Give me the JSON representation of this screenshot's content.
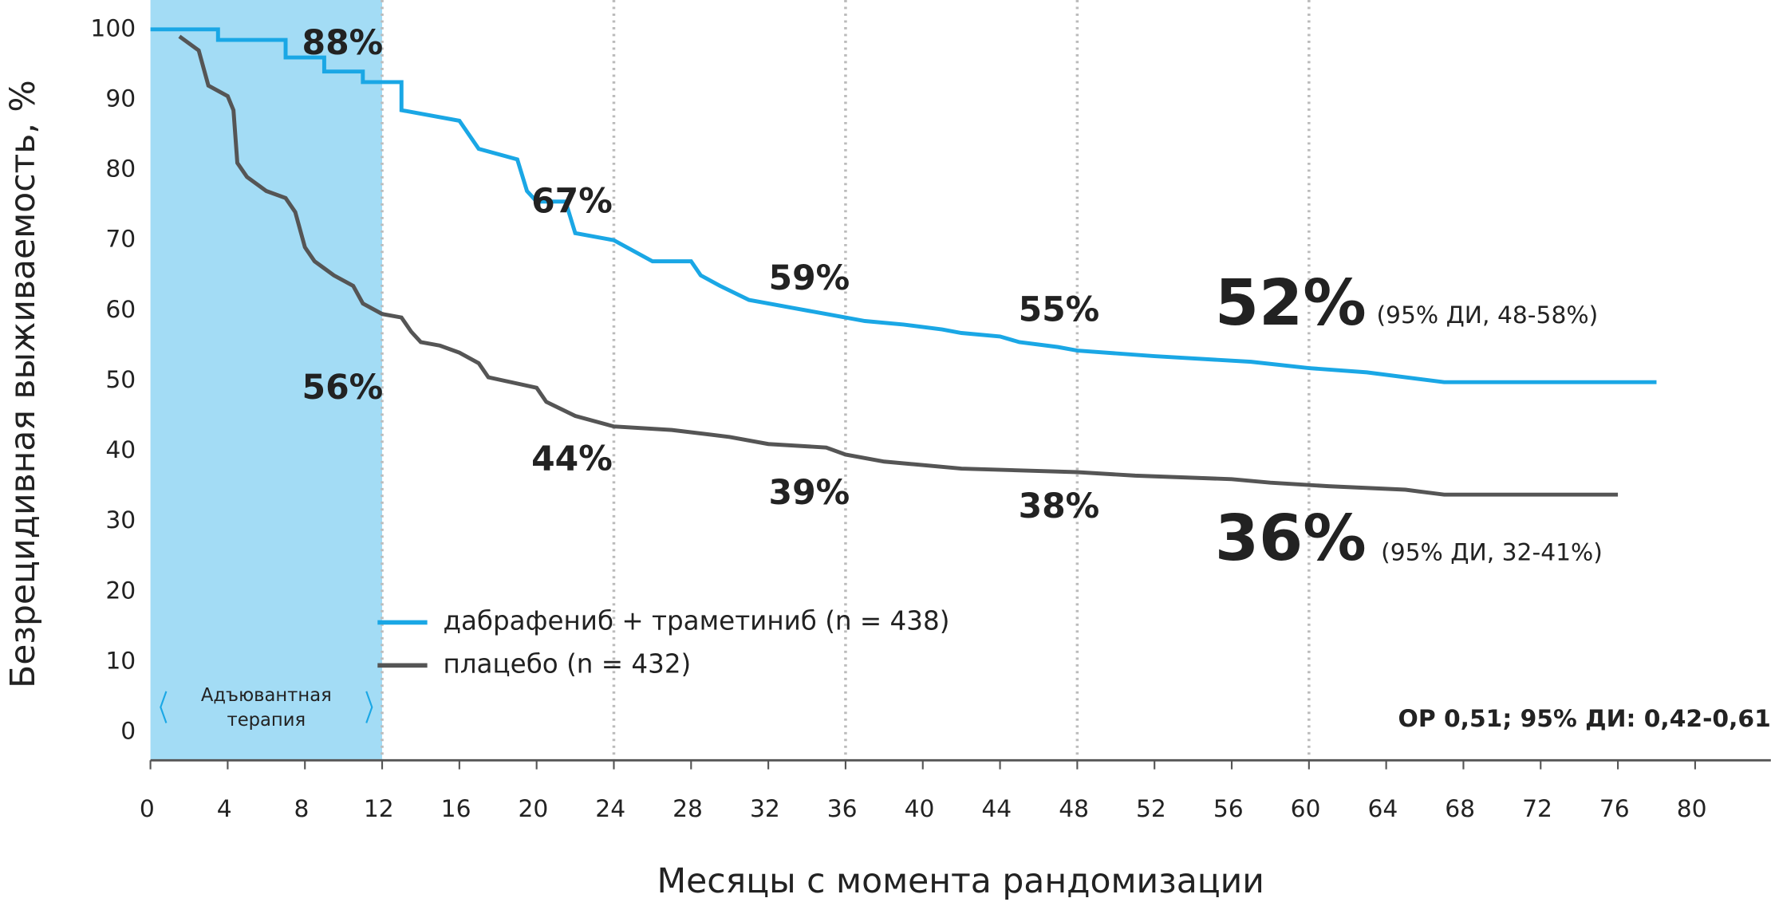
{
  "chart_data": {
    "type": "line",
    "y_label": "Безрецидивная выживаемость, %",
    "x_label": "Месяцы с момента рандомизации",
    "xlim": [
      0,
      80
    ],
    "ylim": [
      -4,
      100
    ],
    "xticks": [
      0,
      4,
      8,
      12,
      16,
      20,
      24,
      28,
      32,
      36,
      40,
      44,
      48,
      52,
      56,
      60,
      64,
      68,
      72,
      76,
      80
    ],
    "yticks": [
      0,
      10,
      20,
      30,
      40,
      50,
      60,
      70,
      80,
      90,
      100
    ],
    "xgrid": [
      12,
      24,
      36,
      48,
      60
    ],
    "shaded_range": [
      0,
      12
    ],
    "shaded_label": [
      "Адъювантная",
      "терапия"
    ],
    "shaded_color": "#a3dcf5",
    "series": [
      {
        "name": "дабрафениб + траметиниб (n = 438)",
        "color": "#1aa7e5",
        "x": [
          0,
          3.5,
          3.5,
          7,
          7,
          9,
          9,
          11,
          11,
          13,
          13,
          16,
          17,
          19,
          19.5,
          20,
          21.5,
          22,
          24,
          26,
          28,
          28.5,
          29.5,
          31,
          33,
          35,
          37,
          39,
          41,
          42,
          44,
          45,
          47,
          48,
          52,
          57,
          60,
          63,
          67,
          78
        ],
        "values": [
          100,
          100,
          98.5,
          98.5,
          96,
          96,
          94,
          94,
          92.5,
          92.5,
          88.5,
          87,
          83,
          81.5,
          77,
          75.5,
          75.5,
          71,
          70,
          67,
          67,
          65,
          63.5,
          61.5,
          60.5,
          59.5,
          58.5,
          58,
          57.3,
          56.8,
          56.3,
          55.5,
          54.8,
          54.3,
          53.5,
          52.7,
          51.8,
          51.2,
          49.8,
          49.8
        ]
      },
      {
        "name": "плацебо (n = 432)",
        "color": "#555555",
        "x": [
          1.5,
          2.5,
          3,
          4,
          4.3,
          4.5,
          5,
          6,
          7,
          7.5,
          8,
          8.5,
          9,
          9.5,
          10.5,
          11,
          12,
          13,
          13.5,
          14,
          15,
          16,
          17,
          17.5,
          20,
          20.5,
          22,
          24,
          27,
          30,
          32,
          35,
          36,
          38,
          42,
          48,
          51,
          56,
          58,
          61,
          65,
          67,
          76
        ],
        "values": [
          99,
          97,
          92,
          90.5,
          88.5,
          81,
          79,
          77,
          76,
          74,
          69,
          67,
          66,
          65,
          63.5,
          61,
          59.5,
          59,
          57,
          55.5,
          55,
          54,
          52.5,
          50.5,
          49,
          47,
          45,
          43.5,
          43,
          42,
          41,
          40.5,
          39.5,
          38.5,
          37.5,
          37,
          36.5,
          36,
          35.5,
          35,
          34.5,
          33.8,
          33.8
        ]
      }
    ],
    "annotations": [
      "88%",
      "67%",
      "59%",
      "55%",
      "52%",
      "(95% ДИ, 48-58%)",
      "56%",
      "44%",
      "39%",
      "38%",
      "36%",
      "(95% ДИ, 32-41%)",
      "ОР 0,51; 95% ДИ: 0,42-0,61"
    ]
  }
}
